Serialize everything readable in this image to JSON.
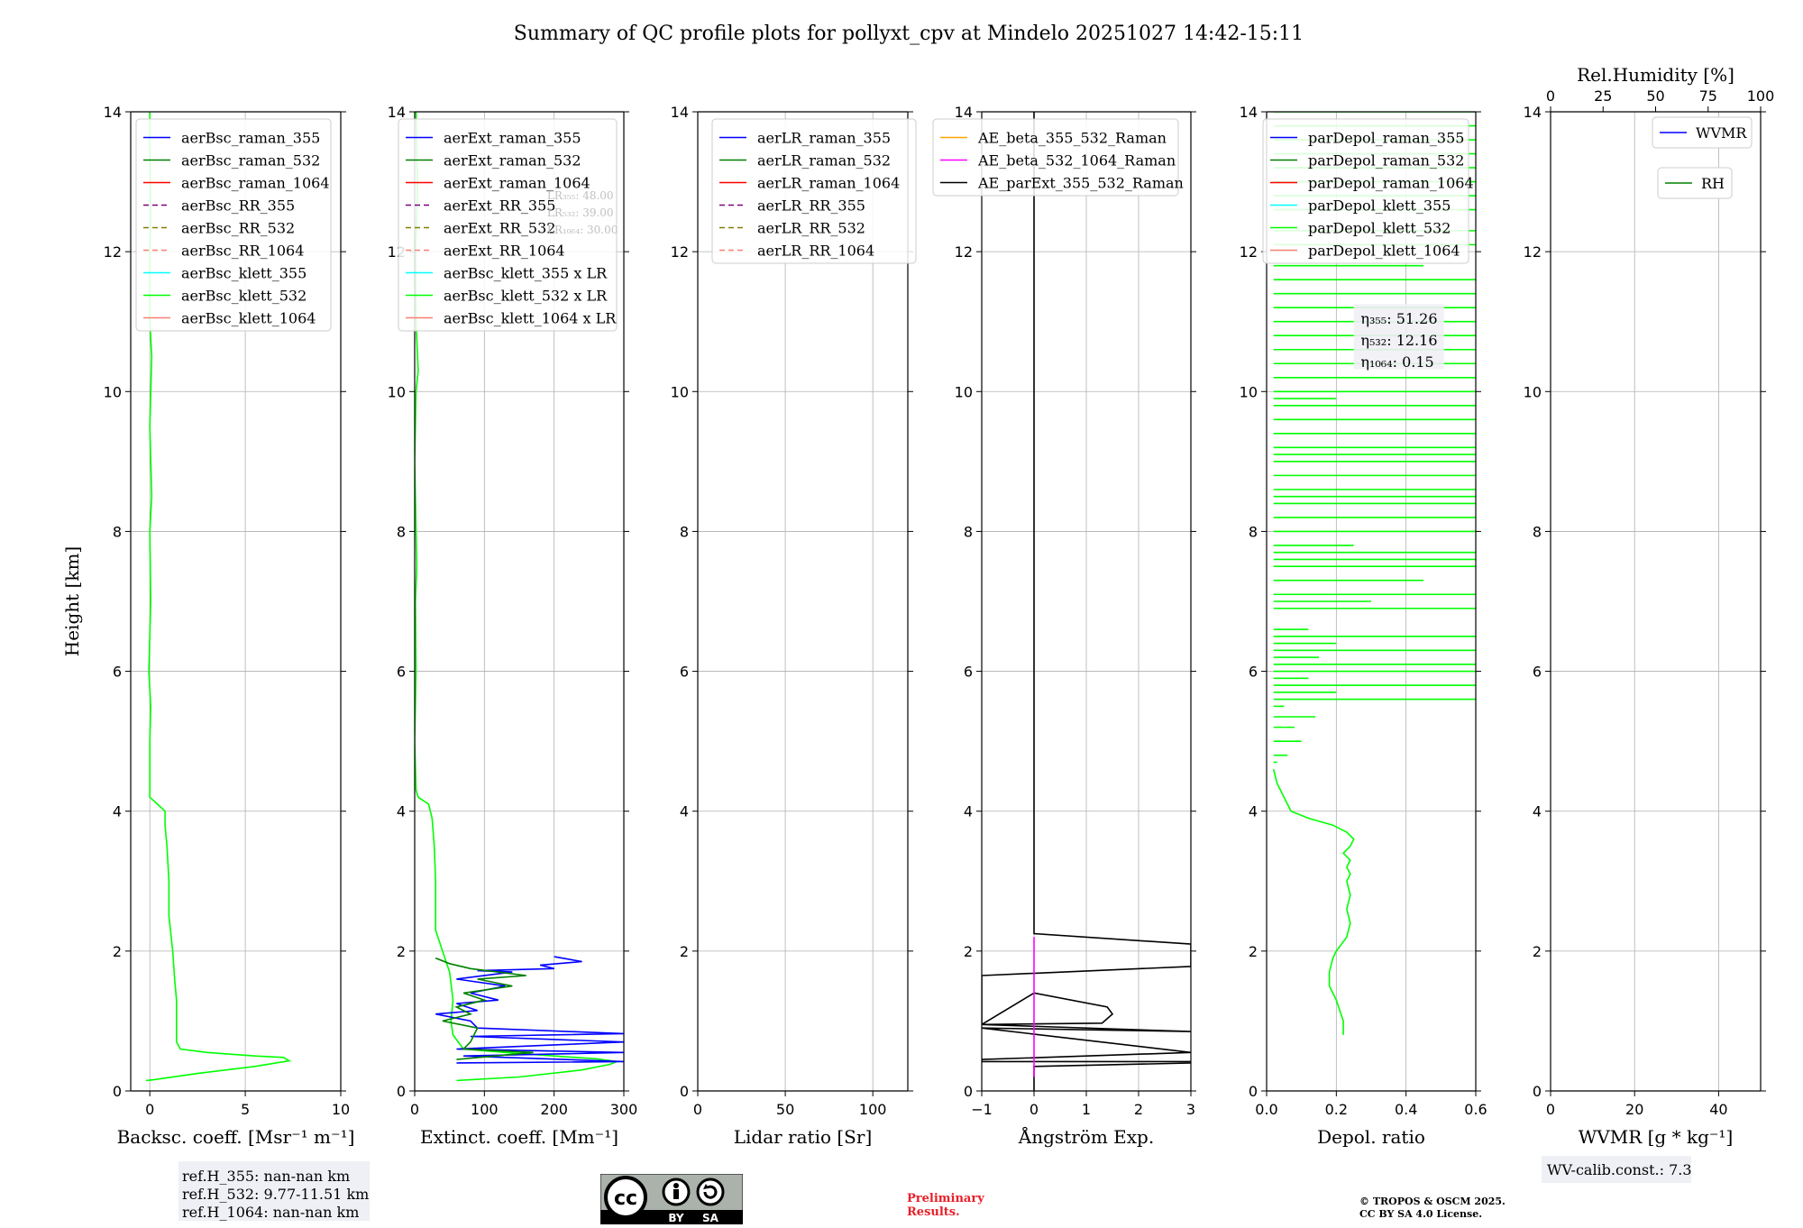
{
  "suptitle": "Summary of QC profile plots for pollyxt_cpv at Mindelo 20251027 14:42-15:11",
  "colors": {
    "blue": "#0000ff",
    "green": "#008000",
    "red": "#ff0000",
    "purple": "#800080",
    "olive": "#808000",
    "salmon": "#fa8072",
    "cyan": "#00ffff",
    "lime": "#00ff00",
    "orange": "#ffa500",
    "magenta": "#ff00ff",
    "black": "#000000",
    "grid": "#b0b0b0",
    "prelim": "#e8202a"
  },
  "chart_data": [
    {
      "id": "backscatter",
      "type": "line",
      "ylabel": "Height [km]",
      "ylim": [
        0,
        14
      ],
      "yticks": [
        0,
        2,
        4,
        6,
        8,
        10,
        12,
        14
      ],
      "xlabel": "Backsc. coeff. [Msr⁻¹ m⁻¹]",
      "xlim": [
        -1,
        10
      ],
      "xticks": [
        0,
        5,
        10
      ],
      "legend": [
        "aerBsc_raman_355",
        "aerBsc_raman_532",
        "aerBsc_raman_1064",
        "aerBsc_RR_355",
        "aerBsc_RR_532",
        "aerBsc_RR_1064",
        "aerBsc_klett_355",
        "aerBsc_klett_532",
        "aerBsc_klett_1064"
      ],
      "legend_styles": [
        "blue",
        "green",
        "red",
        "purple-dash",
        "olive-dash",
        "salmon-dash",
        "cyan",
        "lime",
        "salmon"
      ],
      "series": [
        {
          "name": "aerBsc_klett_532",
          "color": "lime",
          "x": [
            -0.2,
            0.2,
            2.5,
            5.5,
            7.3,
            7.0,
            5.5,
            3.0,
            1.6,
            1.4,
            1.4,
            1.4,
            1.3,
            1.2,
            1.0,
            1.0,
            0.9,
            0.8,
            0.8,
            0.8,
            0.4,
            0.0,
            0.0,
            0.05,
            -0.05,
            0.05,
            0.0,
            0.1,
            0.0,
            0.1,
            0.0,
            0.0,
            0.05,
            0.0,
            0.0
          ],
          "y": [
            0.15,
            0.16,
            0.25,
            0.35,
            0.43,
            0.48,
            0.5,
            0.55,
            0.6,
            0.7,
            1.0,
            1.3,
            1.6,
            2.0,
            2.5,
            3.0,
            3.5,
            3.8,
            3.9,
            4.0,
            4.1,
            4.2,
            5.0,
            5.5,
            6.0,
            7.0,
            8.0,
            8.5,
            9.5,
            10.5,
            11.0,
            12.0,
            12.5,
            13.5,
            14.0
          ]
        }
      ],
      "ref_box": [
        "ref.H_355: nan-nan km",
        "ref.H_532: 9.77-11.51 km",
        "ref.H_1064: nan-nan km"
      ]
    },
    {
      "id": "extinction",
      "type": "line",
      "ylim": [
        0,
        14
      ],
      "yticks": [
        0,
        2,
        4,
        6,
        8,
        10,
        12,
        14
      ],
      "xlabel": "Extinct. coeff. [Mm⁻¹]",
      "xlim": [
        0,
        300
      ],
      "xticks": [
        0,
        100,
        200,
        300
      ],
      "legend": [
        "aerExt_raman_355",
        "aerExt_raman_532",
        "aerExt_raman_1064",
        "aerExt_RR_355",
        "aerExt_RR_532",
        "aerExt_RR_1064",
        "aerBsc_klett_355 x LR",
        "aerBsc_klett_532 x LR",
        "aerBsc_klett_1064 x LR"
      ],
      "legend_styles": [
        "blue",
        "green",
        "red",
        "purple-dash",
        "olive-dash",
        "salmon-dash",
        "cyan",
        "lime",
        "salmon"
      ],
      "lr_labels": [
        "LR₃₅₅: 48.00",
        "LR₅₃₂: 39.00",
        "LR₁₀₆₄: 30.00"
      ],
      "series": [
        {
          "name": "aerBsc_klett_532 x LR",
          "color": "lime",
          "x": [
            60,
            150,
            240,
            280,
            290,
            260,
            200,
            130,
            70,
            55,
            52,
            55,
            50,
            40,
            30,
            30,
            28,
            25,
            20,
            5,
            2,
            0,
            2,
            1,
            3,
            2,
            0,
            2,
            5,
            2,
            1,
            3,
            4,
            2
          ],
          "y": [
            0.15,
            0.2,
            0.3,
            0.38,
            0.42,
            0.46,
            0.5,
            0.55,
            0.6,
            0.8,
            1.0,
            1.3,
            1.7,
            2.0,
            2.3,
            3.0,
            3.5,
            3.9,
            4.1,
            4.2,
            4.3,
            5.0,
            6.0,
            7.0,
            7.5,
            8.0,
            9.0,
            10.0,
            10.3,
            11.0,
            12.0,
            12.5,
            13.0,
            14.0
          ]
        },
        {
          "name": "aerExt_raman_355",
          "color": "blue",
          "x": [
            60,
            300,
            70,
            300,
            60,
            300,
            80,
            300,
            90,
            80,
            30,
            90,
            60,
            120,
            80,
            130,
            60,
            140,
            90,
            200,
            180,
            240,
            200
          ],
          "y": [
            0.4,
            0.42,
            0.5,
            0.55,
            0.6,
            0.7,
            0.78,
            0.82,
            0.9,
            1.0,
            1.1,
            1.15,
            1.25,
            1.3,
            1.4,
            1.5,
            1.6,
            1.7,
            1.72,
            1.75,
            1.8,
            1.85,
            1.92
          ]
        },
        {
          "name": "aerExt_raman_532",
          "color": "green",
          "x": [
            60,
            170,
            70,
            80,
            90,
            40,
            80,
            60,
            100,
            70,
            140,
            90,
            160,
            80,
            50,
            30
          ],
          "y": [
            0.45,
            0.55,
            0.6,
            0.7,
            0.9,
            1.0,
            1.1,
            1.2,
            1.3,
            1.4,
            1.5,
            1.6,
            1.65,
            1.75,
            1.82,
            1.9
          ]
        }
      ]
    },
    {
      "id": "lidar_ratio",
      "type": "line",
      "ylim": [
        0,
        14
      ],
      "yticks": [
        0,
        2,
        4,
        6,
        8,
        10,
        12,
        14
      ],
      "xlabel": "Lidar ratio [Sr]",
      "xlim": [
        0,
        120
      ],
      "xticks": [
        0,
        50,
        100
      ],
      "legend": [
        "aerLR_raman_355",
        "aerLR_raman_532",
        "aerLR_raman_1064",
        "aerLR_RR_355",
        "aerLR_RR_532",
        "aerLR_RR_1064"
      ],
      "legend_styles": [
        "blue",
        "green",
        "red",
        "purple-dash",
        "olive-dash",
        "salmon-dash"
      ],
      "series": []
    },
    {
      "id": "angstrom",
      "type": "line",
      "ylim": [
        0,
        14
      ],
      "yticks": [
        0,
        2,
        4,
        6,
        8,
        10,
        12,
        14
      ],
      "xlabel": "Ångström Exp.",
      "xlim": [
        -1,
        3
      ],
      "xticks": [
        -1,
        0,
        1,
        2,
        3
      ],
      "legend": [
        "AE_beta_355_532_Raman",
        "AE_beta_532_1064_Raman",
        "AE_parExt_355_532_Raman"
      ],
      "legend_styles": [
        "orange",
        "magenta",
        "black"
      ],
      "series": [
        {
          "name": "AE_parExt_355_532_Raman",
          "color": "black",
          "x": [
            0.0,
            0.0,
            3.0,
            3.0,
            -1.0,
            -1.0,
            3.0,
            -1.0,
            3.0,
            -1.0,
            0.0,
            1.4,
            1.5,
            1.3,
            -1.0,
            -1.0,
            3.0,
            3.0,
            0.0,
            0.0
          ],
          "y": [
            0.0,
            0.35,
            0.4,
            0.42,
            0.42,
            0.45,
            0.55,
            0.9,
            0.85,
            0.95,
            1.4,
            1.2,
            1.1,
            0.97,
            0.95,
            1.65,
            1.78,
            2.1,
            2.25,
            14.0
          ]
        },
        {
          "name": "AE_beta_532_1064_Raman",
          "color": "magenta",
          "x": [
            0.0,
            0.0
          ],
          "y": [
            0.2,
            2.2
          ]
        }
      ]
    },
    {
      "id": "depol",
      "type": "line",
      "ylim": [
        0,
        14
      ],
      "yticks": [
        0,
        2,
        4,
        6,
        8,
        10,
        12,
        14
      ],
      "xlabel": "Depol. ratio",
      "xlim": [
        0.0,
        0.6
      ],
      "xticks": [
        0.0,
        0.2,
        0.4,
        0.6
      ],
      "xticklabels": [
        "0.0",
        "0.2",
        "0.4",
        "0.6"
      ],
      "legend": [
        "parDepol_raman_355",
        "parDepol_raman_532",
        "parDepol_raman_1064",
        "parDepol_klett_355",
        "parDepol_klett_532",
        "parDepol_klett_1064"
      ],
      "legend_styles": [
        "blue",
        "green",
        "red",
        "cyan",
        "lime",
        "salmon"
      ],
      "eta_labels": [
        "η₃₅₅: 51.26",
        "η₅₃₂: 12.16",
        "η₁₀₆₄: 0.15"
      ],
      "series": [
        {
          "name": "parDepol_klett_532",
          "color": "lime",
          "x": [
            0.22,
            0.22,
            0.2,
            0.18,
            0.18,
            0.19,
            0.2,
            0.23,
            0.24,
            0.23,
            0.24,
            0.23,
            0.24,
            0.23,
            0.24,
            0.22,
            0.24,
            0.25,
            0.23,
            0.19,
            0.12,
            0.07,
            0.05,
            0.03,
            0.02
          ],
          "y": [
            0.8,
            1.0,
            1.3,
            1.5,
            1.7,
            1.9,
            2.0,
            2.2,
            2.4,
            2.6,
            2.8,
            3.0,
            3.1,
            3.2,
            3.3,
            3.4,
            3.5,
            3.6,
            3.7,
            3.8,
            3.9,
            4.0,
            4.2,
            4.4,
            4.6
          ]
        }
      ],
      "noise_heights_km": [
        4.7,
        4.8,
        5.0,
        5.2,
        5.35,
        5.5,
        5.6,
        5.7,
        5.8,
        5.9,
        6.0,
        6.1,
        6.2,
        6.3,
        6.4,
        6.5,
        6.6,
        6.9,
        7.0,
        7.1,
        7.3,
        7.5,
        7.6,
        7.7,
        7.8,
        8.0,
        8.2,
        8.4,
        8.5,
        8.6,
        8.8,
        9.0,
        9.1,
        9.2,
        9.4,
        9.6,
        9.8,
        9.9,
        10.0,
        10.2,
        10.4,
        10.6,
        10.8,
        11.0,
        11.2,
        11.4,
        11.6,
        11.8,
        12.1,
        12.3,
        12.6,
        12.8,
        13.0,
        13.2,
        13.4,
        13.6,
        13.8,
        14.0
      ],
      "noise_values": [
        0.03,
        0.06,
        0.1,
        0.08,
        0.14,
        0.05,
        0.6,
        0.2,
        0.6,
        0.12,
        0.6,
        0.6,
        0.15,
        0.6,
        0.2,
        0.6,
        0.12,
        0.6,
        0.3,
        0.6,
        0.45,
        0.6,
        0.6,
        0.6,
        0.25,
        0.6,
        0.6,
        0.6,
        0.6,
        0.6,
        0.6,
        0.6,
        0.6,
        0.6,
        0.6,
        0.6,
        0.6,
        0.2,
        0.6,
        0.6,
        0.6,
        0.6,
        0.6,
        0.6,
        0.6,
        0.6,
        0.6,
        0.45,
        0.6,
        0.6,
        0.6,
        0.6,
        0.6,
        0.6,
        0.6,
        0.6,
        0.6,
        0.6
      ]
    },
    {
      "id": "wvmr",
      "type": "line",
      "ylim": [
        0,
        14
      ],
      "yticks": [
        0,
        2,
        4,
        6,
        8,
        10,
        12,
        14
      ],
      "xlabel": "WVMR [g * kg⁻¹]",
      "xlim": [
        0,
        50
      ],
      "xticks": [
        0,
        20,
        40
      ],
      "top_xlabel": "Rel.Humidity [%]",
      "top_xlim": [
        0,
        100
      ],
      "top_xticks": [
        0,
        25,
        50,
        75,
        100
      ],
      "legend_wvmr": "WVMR",
      "legend_rh": "RH",
      "calib_text": "WV-calib.const.: 7.3",
      "series": []
    }
  ],
  "footer": {
    "cc_by": "BY",
    "cc_sa": "SA",
    "prelim_line1": "Preliminary",
    "prelim_line2": "Results.",
    "copyright_line1": "© TROPOS & OSCM 2025.",
    "copyright_line2": "CC BY SA 4.0 License."
  }
}
